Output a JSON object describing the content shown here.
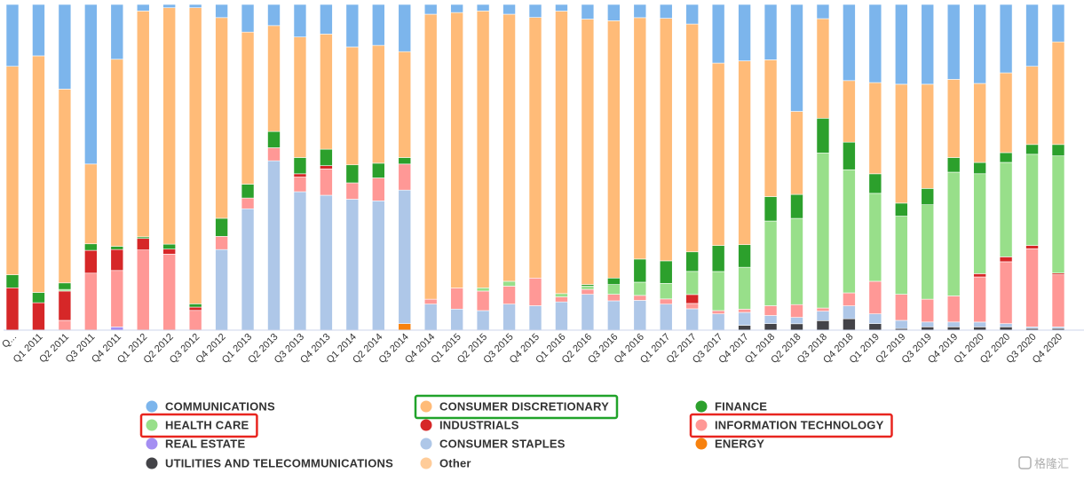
{
  "chart_data": {
    "type": "bar",
    "stacked": "percent",
    "title": "",
    "xlabel": "",
    "ylabel": "",
    "ylim": [
      0,
      100
    ],
    "categories": [
      "Q...",
      "Q1 2011",
      "Q2 2011",
      "Q3 2011",
      "Q4 2011",
      "Q1 2012",
      "Q2 2012",
      "Q3 2012",
      "Q4 2012",
      "Q1 2013",
      "Q2 2013",
      "Q3 2013",
      "Q4 2013",
      "Q1 2014",
      "Q2 2014",
      "Q3 2014",
      "Q4 2014",
      "Q1 2015",
      "Q2 2015",
      "Q3 2015",
      "Q4 2015",
      "Q1 2016",
      "Q2 2016",
      "Q3 2016",
      "Q4 2016",
      "Q1 2017",
      "Q2 2017",
      "Q3 2017",
      "Q4 2017",
      "Q1 2018",
      "Q2 2018",
      "Q3 2018",
      "Q4 2018",
      "Q1 2019",
      "Q2 2019",
      "Q3 2019",
      "Q4 2019",
      "Q1 2020",
      "Q2 2020",
      "Q3 2020",
      "Q4 2020"
    ],
    "series": [
      {
        "name": "UTILITIES AND TELECOMMUNICATIONS",
        "key": "util",
        "color": "#434348",
        "values": [
          0,
          0,
          0,
          0,
          0,
          0,
          0,
          0,
          0,
          0,
          0,
          0,
          0,
          0,
          0,
          0,
          0,
          0,
          0,
          0,
          0,
          0,
          0,
          0,
          0,
          0,
          0,
          0,
          1.5,
          2,
          2,
          3,
          3.5,
          2,
          0.5,
          1,
          1,
          1,
          1,
          0.5,
          0.5
        ]
      },
      {
        "name": "ENERGY",
        "key": "energy",
        "color": "#f7810e",
        "values": [
          0,
          0,
          0,
          0,
          0,
          0,
          0,
          0,
          0,
          0,
          0,
          0,
          0,
          0,
          0,
          2,
          0,
          0,
          0,
          0,
          0,
          0,
          0,
          0,
          0,
          0,
          0,
          0,
          0,
          0,
          0,
          0,
          0,
          0,
          0,
          0,
          0,
          0,
          0,
          0,
          0
        ]
      },
      {
        "name": "REAL ESTATE",
        "key": "realestate",
        "color": "#a48ef2",
        "values": [
          0,
          0,
          0,
          0,
          1,
          0,
          0,
          0,
          0,
          0,
          0,
          0,
          0,
          0,
          0,
          0,
          0,
          0,
          0,
          0,
          0,
          0,
          0,
          0,
          0,
          0,
          0,
          0,
          0,
          0,
          0,
          0,
          0,
          0,
          0,
          0,
          0,
          0,
          0,
          0,
          0
        ]
      },
      {
        "name": "CONSUMER STAPLES",
        "key": "staples",
        "color": "#aec7e8",
        "values": [
          0,
          0,
          0,
          0,
          0,
          0,
          0,
          0,
          24.5,
          39.5,
          52,
          42.5,
          41,
          40,
          39.5,
          41,
          8,
          6.5,
          6,
          8,
          7.5,
          8.5,
          11,
          9,
          9,
          7.5,
          6,
          5,
          4,
          2.5,
          2,
          3,
          4,
          3,
          2.5,
          1.5,
          1.5,
          1.5,
          1,
          0.5,
          0.5
        ]
      },
      {
        "name": "INFORMATION TECHNOLOGY",
        "key": "it",
        "color": "#ff9896",
        "values": [
          0,
          0,
          3,
          17.5,
          17.5,
          24.5,
          23,
          6,
          4,
          3.5,
          4,
          4.5,
          8,
          5,
          7,
          8,
          1.5,
          6.5,
          6,
          5.5,
          8.5,
          1.5,
          1.5,
          2,
          1.5,
          1.5,
          1.5,
          1,
          1,
          3,
          4,
          1,
          4,
          10,
          8,
          7,
          8,
          14,
          19,
          24,
          16
        ]
      },
      {
        "name": "INDUSTRIAL",
        "key": "industrial",
        "color": "#d62728",
        "values": [
          13,
          8,
          9,
          7,
          6.5,
          3.5,
          1.5,
          1,
          0,
          0,
          0,
          1,
          1,
          0,
          0,
          0,
          0,
          0,
          0,
          0,
          0,
          0,
          0,
          0,
          0,
          0,
          2.5,
          0,
          0,
          0,
          0,
          0,
          0,
          0,
          0,
          0,
          0,
          1,
          1.5,
          1,
          0.5
        ]
      },
      {
        "name": "HEALTH CARE",
        "key": "healthcare",
        "color": "#98df8a",
        "values": [
          0,
          0,
          0.5,
          0,
          0,
          0,
          0,
          0,
          0,
          0,
          0,
          0,
          0,
          0,
          0,
          0,
          0,
          0,
          1,
          1.5,
          0,
          1,
          1,
          3,
          4,
          4.5,
          6.5,
          12,
          13,
          26,
          27,
          49,
          38,
          27,
          24,
          29,
          38,
          31,
          29,
          28,
          36
        ]
      },
      {
        "name": "FINANCE",
        "key": "finance",
        "color": "#2ca02c",
        "values": [
          4,
          3,
          2,
          2,
          1,
          0.5,
          1.5,
          1,
          5.5,
          4.5,
          5,
          5,
          5,
          5.5,
          4.5,
          2,
          0,
          0,
          0,
          0,
          0,
          0,
          0.5,
          2,
          7,
          6.5,
          5.5,
          8,
          7,
          7.5,
          7.5,
          11,
          8.5,
          6,
          4,
          5,
          4.5,
          3.5,
          3,
          3,
          3.5
        ]
      },
      {
        "name": "CONSUMER DISCRETIONARY",
        "key": "discretionary",
        "color": "#ffbb78",
        "values": [
          64,
          69,
          59.5,
          24.5,
          58,
          69,
          71.5,
          90,
          61,
          49.5,
          32.5,
          37,
          35,
          36,
          36,
          32.5,
          87.5,
          85,
          85,
          82,
          80,
          85,
          81.5,
          79,
          73,
          70,
          64,
          56,
          57,
          42,
          26,
          31.5,
          19,
          28,
          36.5,
          32,
          24,
          24.5,
          24.5,
          24,
          31.5
        ]
      },
      {
        "name": "COMMUNICATIONS",
        "key": "communications",
        "color": "#7cb5ec",
        "values": [
          19,
          15,
          26,
          49,
          17,
          2,
          1,
          1,
          4,
          9,
          6.5,
          10,
          9,
          13,
          12.5,
          14.5,
          3,
          2.5,
          2,
          3,
          4,
          2,
          4.5,
          5,
          4,
          4,
          5.5,
          18,
          17.5,
          17,
          33.5,
          4.5,
          23.5,
          24,
          24.5,
          24.5,
          23,
          24.5,
          21,
          19,
          11.5
        ]
      }
    ],
    "legend": {
      "placement": "bottom",
      "columns": [
        [
          "COMMUNICATIONS",
          "HEALTH CARE",
          "REAL ESTATE",
          "UTILITIES AND TELECOMMUNICATIONS"
        ],
        [
          "CONSUMER DISCRETIONARY",
          "INDUSTRIALS",
          "CONSUMER STAPLES",
          "Other"
        ],
        [
          "FINANCE",
          "INFORMATION TECHNOLOGY",
          "ENERGY"
        ]
      ],
      "colors": {
        "COMMUNICATIONS": "#7cb5ec",
        "HEALTH CARE": "#98df8a",
        "REAL ESTATE": "#a48ef2",
        "UTILITIES AND TELECOMMUNICATIONS": "#434348",
        "CONSUMER DISCRETIONARY": "#ffbb78",
        "INDUSTRIALS": "#d62728",
        "CONSUMER STAPLES": "#aec7e8",
        "Other": "#ffcc99",
        "FINANCE": "#2ca02c",
        "INFORMATION TECHNOLOGY": "#ff9896",
        "ENERGY": "#f7810e"
      },
      "highlighted": {
        "HEALTH CARE": "#e8251f",
        "CONSUMER DISCRETIONARY": "#21a32a",
        "INFORMATION TECHNOLOGY": "#e8251f"
      }
    },
    "watermark": "格隆汇"
  }
}
